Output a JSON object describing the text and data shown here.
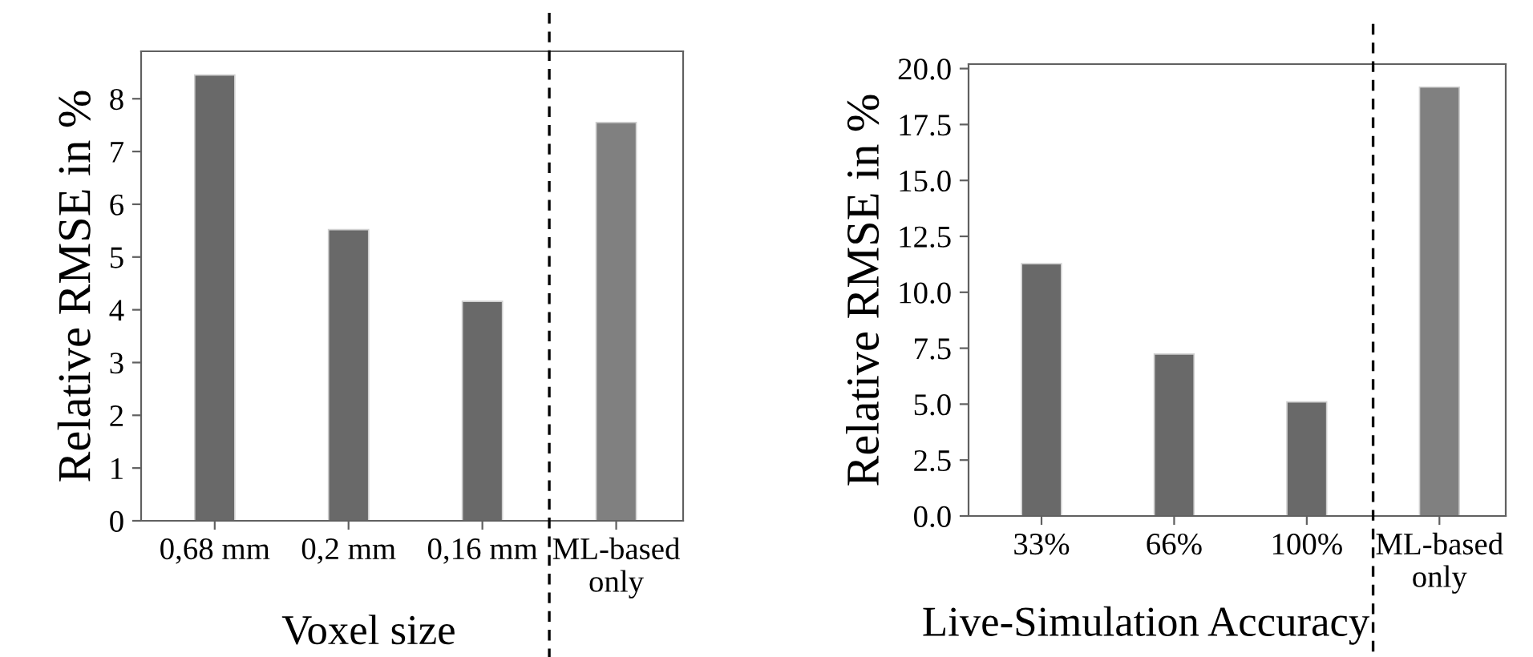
{
  "chart_data": [
    {
      "type": "bar",
      "xlabel": "Voxel size",
      "ylabel": "Relative RMSE in %",
      "categories": [
        "0,68 mm",
        "0,2 mm",
        "0,16 mm",
        "ML-based\nonly"
      ],
      "values": [
        8.45,
        5.52,
        4.16,
        7.55
      ],
      "colors": [
        "#696969",
        "#696969",
        "#696969",
        "#808080"
      ],
      "ylim": [
        0,
        8.9
      ],
      "yticks": [
        0,
        1,
        2,
        3,
        4,
        5,
        6,
        7,
        8
      ]
    },
    {
      "type": "bar",
      "xlabel": "Live-Simulation Accuracy",
      "ylabel": "Relative RMSE in %",
      "categories": [
        "33%",
        "66%",
        "100%",
        "ML-based\nonly"
      ],
      "values": [
        11.28,
        7.24,
        5.1,
        19.17
      ],
      "colors": [
        "#696969",
        "#696969",
        "#696969",
        "#808080"
      ],
      "ylim": [
        0,
        20.2
      ],
      "yticks": [
        {
          "value": 0,
          "label": "0.0"
        },
        {
          "value": 2.5,
          "label": "2.5"
        },
        {
          "value": 5,
          "label": "5.0"
        },
        {
          "value": 7.5,
          "label": "7.5"
        },
        {
          "value": 10,
          "label": "10.0"
        },
        {
          "value": 12.5,
          "label": "12.5"
        },
        {
          "value": 15,
          "label": "15.0"
        },
        {
          "value": 17.5,
          "label": "17.5"
        },
        {
          "value": 20,
          "label": "20.0"
        }
      ]
    }
  ]
}
